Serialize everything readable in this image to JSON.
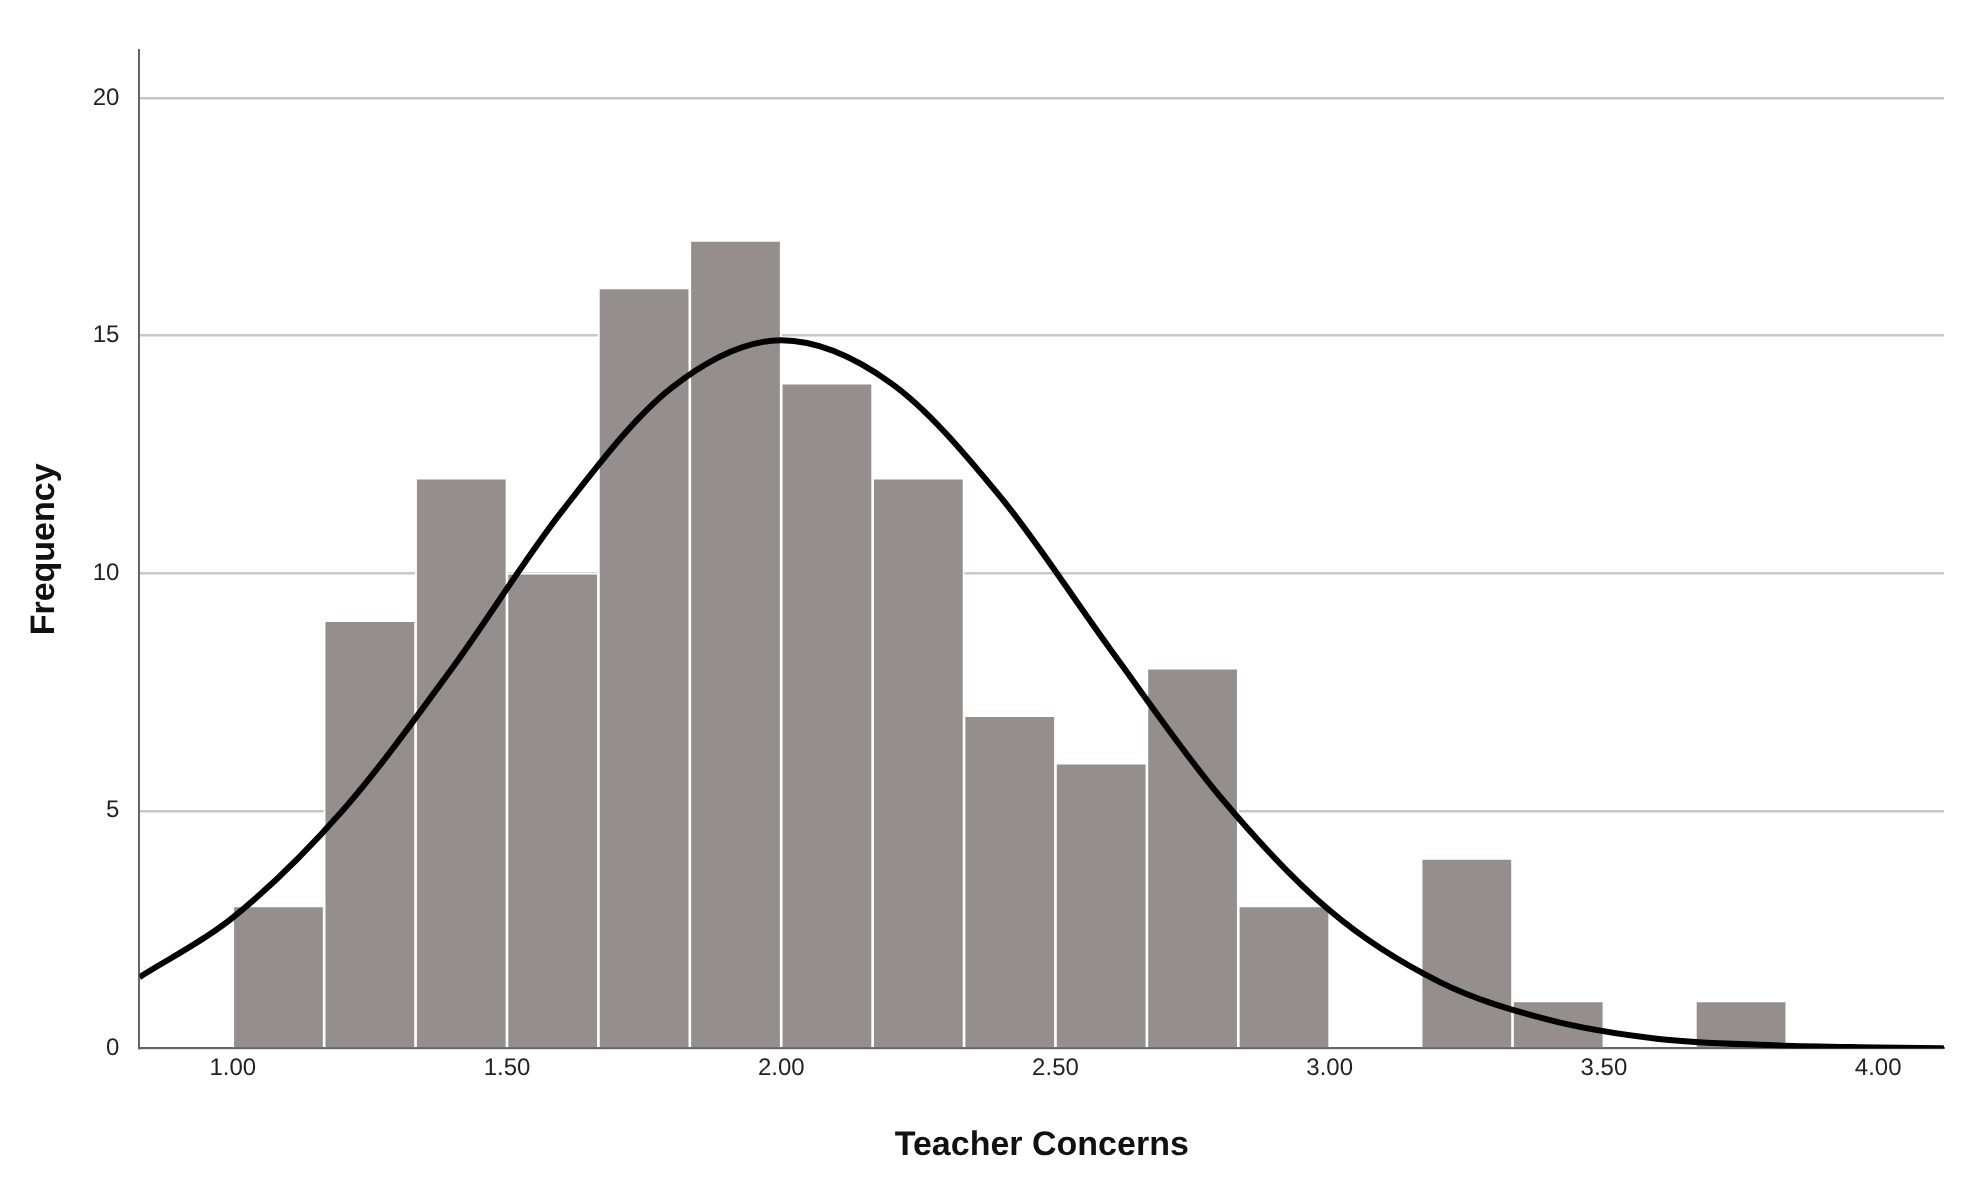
{
  "chart_data": {
    "type": "histogram",
    "xlabel": "Teacher Concerns",
    "ylabel": "Frequency",
    "bins": [
      1.0,
      1.1667,
      1.3333,
      1.5,
      1.6667,
      1.8333,
      2.0,
      2.1667,
      2.3333,
      2.5,
      2.6667,
      2.8333,
      3.0,
      3.1667,
      3.3333,
      3.5,
      3.6667,
      3.8333
    ],
    "values": [
      3,
      9,
      12,
      10,
      16,
      17,
      14,
      12,
      7,
      6,
      8,
      3,
      0,
      4,
      1,
      0,
      1
    ],
    "color": "#948f8d",
    "series": [
      {
        "type": "line",
        "color": "#000000",
        "x": [
          0.83,
          1.0,
          1.2,
          1.4,
          1.6,
          1.8,
          2.0,
          2.2,
          2.4,
          2.6,
          2.8,
          3.0,
          3.2,
          3.4,
          3.6,
          3.8,
          4.0,
          4.12
        ],
        "values": [
          1.5,
          2.75,
          5.0,
          8.0,
          11.3,
          13.9,
          14.9,
          14.0,
          11.6,
          8.4,
          5.3,
          2.9,
          1.4,
          0.6,
          0.2,
          0.07,
          0.02,
          0.0
        ]
      }
    ],
    "xlim": [
      0.83,
      4.12
    ],
    "xticks": [
      {
        "value": 1,
        "label": "1.00"
      },
      {
        "value": 1.5,
        "label": "1.50"
      },
      {
        "value": 2,
        "label": "2.00"
      },
      {
        "value": 2.5,
        "label": "2.50"
      },
      {
        "value": 3,
        "label": "3.00"
      },
      {
        "value": 3.5,
        "label": "3.50"
      },
      {
        "value": 4,
        "label": "4.00"
      }
    ],
    "ylim": [
      0,
      21
    ],
    "yticks": [
      0,
      5,
      10,
      15,
      20
    ],
    "grid": "y"
  }
}
